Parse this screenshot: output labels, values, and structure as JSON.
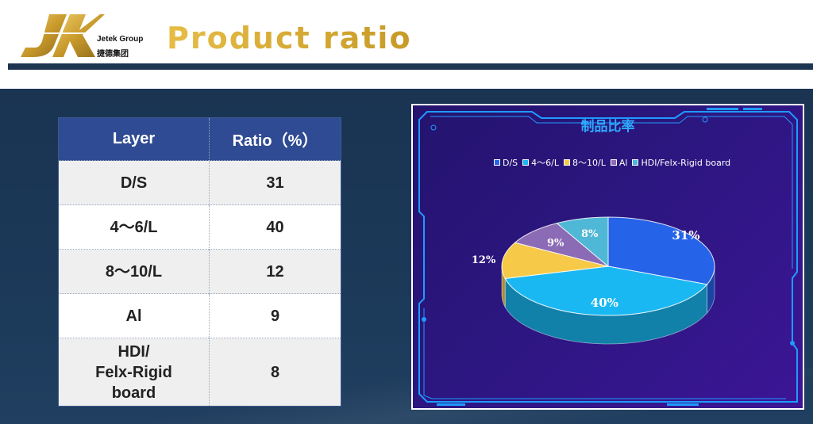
{
  "header": {
    "logo_mark": "JK",
    "company_en": "Jetek Group",
    "company_cn": "捷德集团",
    "title": "Product ratio"
  },
  "table": {
    "headers": [
      "Layer",
      "Ratio（%）"
    ],
    "rows": [
      {
        "layer": "D/S",
        "ratio": "31"
      },
      {
        "layer": "4～6/L",
        "ratio": "40"
      },
      {
        "layer": "8～10/L",
        "ratio": "12"
      },
      {
        "layer": "Al",
        "ratio": "9"
      },
      {
        "layer": "HDI/\nFelx-Rigid\nboard",
        "ratio": "8"
      }
    ]
  },
  "chart_data": {
    "type": "pie",
    "title": "制品比率",
    "legend_position": "top",
    "labels": [
      "D/S",
      "4～6/L",
      "8～10/L",
      "Al",
      "HDI/Felx-Rigid board"
    ],
    "values": [
      31,
      40,
      12,
      9,
      8
    ],
    "data_labels": [
      "31%",
      "40%",
      "12%",
      "9%",
      "8%"
    ],
    "colors": [
      "#2563e8",
      "#1ab8f2",
      "#f7c948",
      "#8b6bb5",
      "#4fb8d6"
    ]
  }
}
